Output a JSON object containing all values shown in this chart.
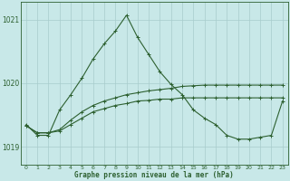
{
  "title": "Graphe pression niveau de la mer (hPa)",
  "background_color": "#c8e8e8",
  "grid_color": "#a8cccc",
  "line_color": "#2d6030",
  "x_hours": [
    0,
    1,
    2,
    3,
    4,
    5,
    6,
    7,
    8,
    9,
    10,
    11,
    12,
    13,
    14,
    15,
    16,
    17,
    18,
    19,
    20,
    21,
    22,
    23
  ],
  "series1": [
    1019.35,
    1019.18,
    1019.18,
    1019.58,
    1019.82,
    1020.08,
    1020.38,
    1020.62,
    1020.82,
    1021.07,
    1020.72,
    1020.45,
    1020.18,
    1019.98,
    1019.82,
    1019.58,
    1019.45,
    1019.35,
    1019.18,
    1019.12,
    1019.12,
    1019.15,
    1019.18,
    1019.72
  ],
  "series2": [
    1019.33,
    1019.22,
    1019.22,
    1019.27,
    1019.42,
    1019.55,
    1019.65,
    1019.72,
    1019.77,
    1019.82,
    1019.85,
    1019.88,
    1019.9,
    1019.92,
    1019.95,
    1019.96,
    1019.97,
    1019.97,
    1019.97,
    1019.97,
    1019.97,
    1019.97,
    1019.97,
    1019.97
  ],
  "series3": [
    1019.33,
    1019.22,
    1019.22,
    1019.25,
    1019.35,
    1019.45,
    1019.55,
    1019.6,
    1019.65,
    1019.68,
    1019.72,
    1019.73,
    1019.75,
    1019.75,
    1019.77,
    1019.77,
    1019.77,
    1019.77,
    1019.77,
    1019.77,
    1019.77,
    1019.77,
    1019.77,
    1019.77
  ],
  "ylim": [
    1018.72,
    1021.28
  ],
  "yticks": [
    1019,
    1020,
    1021
  ],
  "figsize": [
    3.2,
    2.0
  ],
  "dpi": 100,
  "marker": "+",
  "marker_size": 3,
  "linewidth": 0.8
}
